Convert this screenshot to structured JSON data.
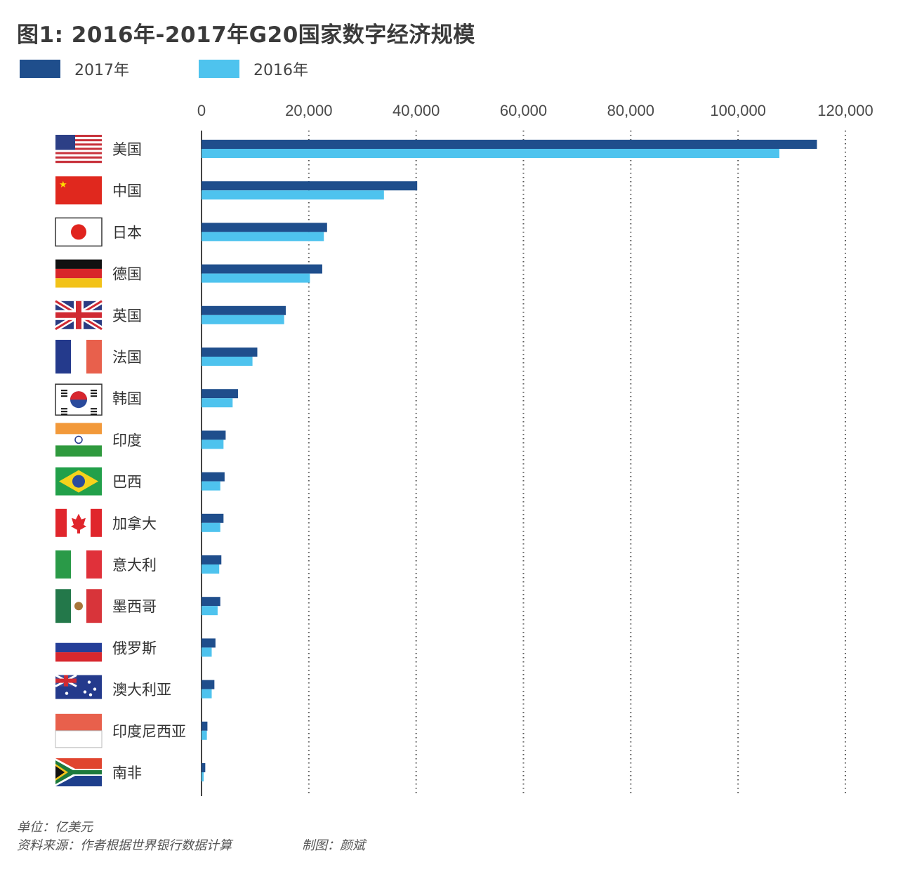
{
  "title": "图1: 2016年-2017年G20国家数字经济规模",
  "footer": {
    "unit": "单位：亿美元",
    "source": "资料来源：作者根据世界银行数据计算",
    "credit": "制图：颜斌"
  },
  "colors": {
    "series_2017": "#1f4e8c",
    "series_2016": "#4ec3ee",
    "grid": "#555555",
    "axis": "#444444"
  },
  "chart_data": {
    "type": "bar",
    "orientation": "horizontal",
    "title": "图1: 2016年-2017年G20国家数字经济规模",
    "xlabel": "",
    "ylabel": "",
    "unit": "亿美元",
    "xlim": [
      0,
      120000
    ],
    "xticks": [
      0,
      20000,
      40000,
      60000,
      80000,
      100000,
      120000
    ],
    "xtick_labels": [
      "0",
      "20,000",
      "40,000",
      "60,000",
      "80,000",
      "100,000",
      "120,000"
    ],
    "grid": "vertical dotted",
    "legend_position": "top-left",
    "categories": [
      "美国",
      "中国",
      "日本",
      "德国",
      "英国",
      "法国",
      "韩国",
      "印度",
      "巴西",
      "加拿大",
      "意大利",
      "墨西哥",
      "俄罗斯",
      "澳大利亚",
      "印度尼西亚",
      "南非"
    ],
    "flags": [
      "us-flag-icon",
      "china-flag-icon",
      "japan-flag-icon",
      "germany-flag-icon",
      "uk-flag-icon",
      "france-flag-icon",
      "korea-flag-icon",
      "india-flag-icon",
      "brazil-flag-icon",
      "canada-flag-icon",
      "italy-flag-icon",
      "mexico-flag-icon",
      "russia-flag-icon",
      "australia-flag-icon",
      "indonesia-flag-icon",
      "south-africa-flag-icon"
    ],
    "series": [
      {
        "name": "2017年",
        "values": [
          114700,
          40200,
          23400,
          22500,
          15700,
          10400,
          6800,
          4500,
          4300,
          4100,
          3700,
          3500,
          2600,
          2400,
          1100,
          700
        ]
      },
      {
        "name": "2016年",
        "values": [
          107700,
          34000,
          22800,
          20200,
          15400,
          9500,
          5800,
          4100,
          3500,
          3500,
          3300,
          3000,
          1900,
          1900,
          1000,
          400
        ]
      }
    ]
  }
}
